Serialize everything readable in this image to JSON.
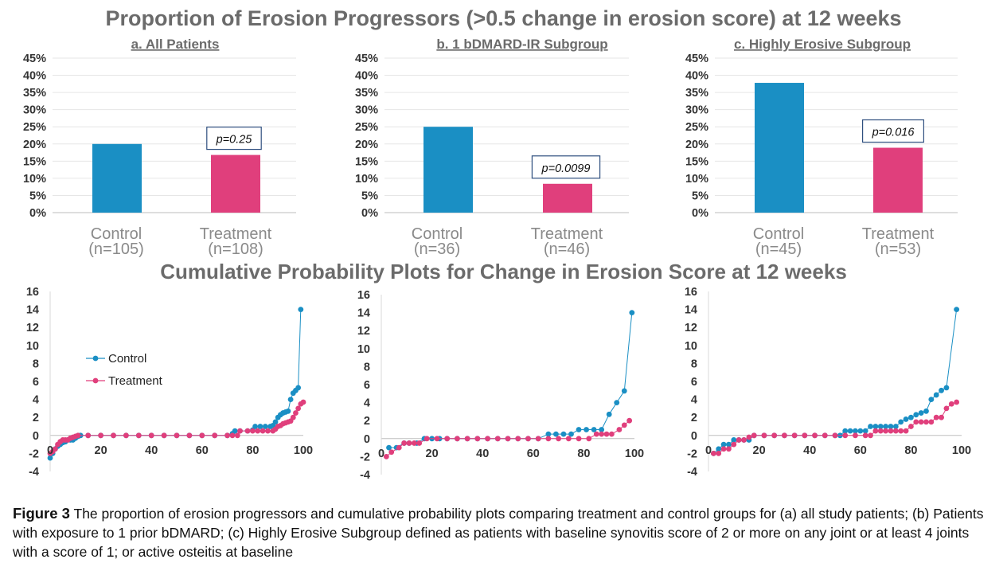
{
  "titles": {
    "top": "Proportion of Erosion Progressors (>0.5 change in erosion score) at 12 weeks",
    "bottom": "Cumulative Probability Plots for Change in Erosion Score at 12 weeks"
  },
  "caption": {
    "label": "Figure 3",
    "text": " The proportion of erosion progressors and cumulative probability plots comparing treatment and control groups for (a) all study patients; (b) Patients with exposure to 1 prior bDMARD; (c) Highly Erosive Subgroup defined as patients with baseline synovitis score of 2 or more on any joint or at least 4 joints with a score of 1; or active osteitis at baseline"
  },
  "colors": {
    "control": "#1a8fc4",
    "treatment": "#e03f7c",
    "axis_text": "#333333",
    "cat_text": "#8a8a8a"
  },
  "chart_data": [
    {
      "type": "bar",
      "title": "a. All Patients",
      "categories": [
        "Control",
        "Treatment"
      ],
      "category_n": [
        "(n=105)",
        "(n=108)"
      ],
      "values": [
        20,
        16.8
      ],
      "value_unit": "%",
      "ylim": [
        0,
        45
      ],
      "yticks": [
        "0%",
        "5%",
        "10%",
        "15%",
        "20%",
        "25%",
        "30%",
        "35%",
        "40%",
        "45%"
      ],
      "annotation": "p=0.25",
      "grid": true
    },
    {
      "type": "bar",
      "title": "b. 1 bDMARD-IR Subgroup",
      "categories": [
        "Control",
        "Treatment"
      ],
      "category_n": [
        "(n=36)",
        "(n=46)"
      ],
      "values": [
        25,
        8.4
      ],
      "value_unit": "%",
      "ylim": [
        0,
        45
      ],
      "yticks": [
        "0%",
        "5%",
        "10%",
        "15%",
        "20%",
        "25%",
        "30%",
        "35%",
        "40%",
        "45%"
      ],
      "annotation": "p=0.0099",
      "grid": true
    },
    {
      "type": "bar",
      "title": "c. Highly Erosive Subgroup",
      "categories": [
        "Control",
        "Treatment"
      ],
      "category_n": [
        "(n=45)",
        "(n=53)"
      ],
      "values": [
        37.8,
        18.9
      ],
      "value_unit": "%",
      "ylim": [
        0,
        45
      ],
      "yticks": [
        "0%",
        "5%",
        "10%",
        "15%",
        "20%",
        "25%",
        "30%",
        "35%",
        "40%",
        "45%"
      ],
      "annotation": "p=0.016",
      "grid": true
    },
    {
      "type": "line",
      "xlim": [
        0,
        100
      ],
      "ylim": [
        -4,
        16
      ],
      "xticks": [
        0,
        20,
        40,
        60,
        80,
        100
      ],
      "yticks": [
        -4,
        -2,
        0,
        2,
        4,
        6,
        8,
        10,
        12,
        14,
        16
      ],
      "legend": "top-left",
      "series": [
        {
          "name": "Control",
          "points": [
            [
              0,
              -2.5
            ],
            [
              1,
              -2
            ],
            [
              2,
              -1.5
            ],
            [
              3,
              -1.2
            ],
            [
              4,
              -1
            ],
            [
              5,
              -0.8
            ],
            [
              6,
              -0.7
            ],
            [
              7,
              -0.5
            ],
            [
              8,
              -0.5
            ],
            [
              9,
              -0.5
            ],
            [
              10,
              -0.3
            ],
            [
              11,
              -0.1
            ],
            [
              12,
              0
            ],
            [
              15,
              0
            ],
            [
              20,
              0
            ],
            [
              25,
              0
            ],
            [
              30,
              0
            ],
            [
              35,
              0
            ],
            [
              40,
              0
            ],
            [
              45,
              0
            ],
            [
              50,
              0
            ],
            [
              55,
              0
            ],
            [
              60,
              0
            ],
            [
              65,
              0
            ],
            [
              70,
              0
            ],
            [
              72,
              0.2
            ],
            [
              73,
              0.5
            ],
            [
              75,
              0.5
            ],
            [
              78,
              0.5
            ],
            [
              80,
              0.6
            ],
            [
              81,
              1
            ],
            [
              83,
              1
            ],
            [
              85,
              1
            ],
            [
              87,
              1
            ],
            [
              88,
              1.1
            ],
            [
              89,
              1.5
            ],
            [
              90,
              2
            ],
            [
              91,
              2.3
            ],
            [
              92,
              2.5
            ],
            [
              93,
              2.6
            ],
            [
              94,
              2.7
            ],
            [
              95,
              4
            ],
            [
              96,
              4.7
            ],
            [
              97,
              5
            ],
            [
              98,
              5.3
            ],
            [
              99,
              14
            ]
          ]
        },
        {
          "name": "Treatment",
          "points": [
            [
              0,
              -2
            ],
            [
              1,
              -1.8
            ],
            [
              2,
              -1.5
            ],
            [
              3,
              -1
            ],
            [
              4,
              -0.7
            ],
            [
              5,
              -0.5
            ],
            [
              6,
              -0.5
            ],
            [
              7,
              -0.5
            ],
            [
              8,
              -0.3
            ],
            [
              9,
              -0.2
            ],
            [
              10,
              -0.1
            ],
            [
              11,
              0
            ],
            [
              15,
              0
            ],
            [
              20,
              0
            ],
            [
              25,
              0
            ],
            [
              30,
              0
            ],
            [
              35,
              0
            ],
            [
              40,
              0
            ],
            [
              45,
              0
            ],
            [
              50,
              0
            ],
            [
              55,
              0
            ],
            [
              60,
              0
            ],
            [
              65,
              0
            ],
            [
              70,
              0
            ],
            [
              72,
              0
            ],
            [
              74,
              0
            ],
            [
              75,
              0.5
            ],
            [
              78,
              0.5
            ],
            [
              80,
              0.5
            ],
            [
              82,
              0.5
            ],
            [
              84,
              0.5
            ],
            [
              86,
              0.5
            ],
            [
              88,
              0.5
            ],
            [
              89,
              0.7
            ],
            [
              90,
              1
            ],
            [
              91,
              1.1
            ],
            [
              92,
              1.3
            ],
            [
              93,
              1.4
            ],
            [
              94,
              1.5
            ],
            [
              95,
              1.6
            ],
            [
              96,
              2
            ],
            [
              97,
              2.5
            ],
            [
              98,
              3
            ],
            [
              99,
              3.5
            ],
            [
              100,
              3.7
            ]
          ]
        }
      ]
    },
    {
      "type": "line",
      "xlim": [
        0,
        100
      ],
      "ylim": [
        -4,
        16
      ],
      "xticks": [
        0,
        20,
        40,
        60,
        80,
        100
      ],
      "yticks": [
        -4,
        -2,
        0,
        2,
        4,
        6,
        8,
        10,
        12,
        14,
        16
      ],
      "series": [
        {
          "name": "Control",
          "points": [
            [
              3,
              -1
            ],
            [
              6,
              -1
            ],
            [
              9,
              -0.5
            ],
            [
              11,
              -0.5
            ],
            [
              14,
              -0.5
            ],
            [
              17,
              0
            ],
            [
              20,
              0
            ],
            [
              23,
              0
            ],
            [
              26,
              0
            ],
            [
              30,
              0
            ],
            [
              34,
              0
            ],
            [
              38,
              0
            ],
            [
              42,
              0
            ],
            [
              46,
              0
            ],
            [
              50,
              0
            ],
            [
              54,
              0
            ],
            [
              58,
              0
            ],
            [
              62,
              0
            ],
            [
              66,
              0.5
            ],
            [
              69,
              0.5
            ],
            [
              72,
              0.5
            ],
            [
              75,
              0.5
            ],
            [
              78,
              1
            ],
            [
              81,
              1
            ],
            [
              84,
              1
            ],
            [
              87,
              1
            ],
            [
              90,
              2.7
            ],
            [
              93,
              4
            ],
            [
              96,
              5.3
            ],
            [
              99,
              14
            ]
          ]
        },
        {
          "name": "Treatment",
          "points": [
            [
              2,
              -2
            ],
            [
              4,
              -1.5
            ],
            [
              7,
              -1
            ],
            [
              9,
              -0.5
            ],
            [
              11,
              -0.5
            ],
            [
              13,
              -0.5
            ],
            [
              15,
              -0.5
            ],
            [
              18,
              0
            ],
            [
              22,
              0
            ],
            [
              26,
              0
            ],
            [
              30,
              0
            ],
            [
              34,
              0
            ],
            [
              38,
              0
            ],
            [
              42,
              0
            ],
            [
              46,
              0
            ],
            [
              50,
              0
            ],
            [
              54,
              0
            ],
            [
              58,
              0
            ],
            [
              62,
              0
            ],
            [
              66,
              0
            ],
            [
              70,
              0
            ],
            [
              74,
              0
            ],
            [
              78,
              0
            ],
            [
              82,
              0
            ],
            [
              85,
              0.5
            ],
            [
              87,
              0.5
            ],
            [
              89,
              0.5
            ],
            [
              91,
              0.5
            ],
            [
              94,
              1
            ],
            [
              96,
              1.5
            ],
            [
              98,
              2
            ]
          ]
        }
      ]
    },
    {
      "type": "line",
      "xlim": [
        0,
        100
      ],
      "ylim": [
        -4,
        16
      ],
      "xticks": [
        0,
        20,
        40,
        60,
        80,
        100
      ],
      "yticks": [
        -4,
        -2,
        0,
        2,
        4,
        6,
        8,
        10,
        12,
        14,
        16
      ],
      "series": [
        {
          "name": "Control",
          "points": [
            [
              2,
              -2
            ],
            [
              4,
              -1.5
            ],
            [
              6,
              -1
            ],
            [
              8,
              -1
            ],
            [
              10,
              -0.5
            ],
            [
              12,
              -0.5
            ],
            [
              14,
              -0.5
            ],
            [
              16,
              -0.5
            ],
            [
              18,
              0
            ],
            [
              22,
              0
            ],
            [
              26,
              0
            ],
            [
              30,
              0
            ],
            [
              34,
              0
            ],
            [
              38,
              0
            ],
            [
              42,
              0
            ],
            [
              46,
              0
            ],
            [
              50,
              0
            ],
            [
              52,
              0
            ],
            [
              54,
              0.5
            ],
            [
              56,
              0.5
            ],
            [
              58,
              0.5
            ],
            [
              60,
              0.5
            ],
            [
              62,
              0.5
            ],
            [
              64,
              1
            ],
            [
              66,
              1
            ],
            [
              68,
              1
            ],
            [
              70,
              1
            ],
            [
              72,
              1
            ],
            [
              74,
              1
            ],
            [
              76,
              1.5
            ],
            [
              78,
              1.8
            ],
            [
              80,
              2
            ],
            [
              82,
              2.3
            ],
            [
              84,
              2.5
            ],
            [
              86,
              2.7
            ],
            [
              88,
              4
            ],
            [
              90,
              4.5
            ],
            [
              92,
              5
            ],
            [
              94,
              5.3
            ],
            [
              98,
              14
            ]
          ]
        },
        {
          "name": "Treatment",
          "points": [
            [
              2,
              -2
            ],
            [
              4,
              -2
            ],
            [
              6,
              -1.5
            ],
            [
              8,
              -1.5
            ],
            [
              10,
              -1
            ],
            [
              12,
              -0.5
            ],
            [
              14,
              -0.5
            ],
            [
              16,
              -0.2
            ],
            [
              18,
              0
            ],
            [
              22,
              0
            ],
            [
              26,
              0
            ],
            [
              30,
              0
            ],
            [
              34,
              0
            ],
            [
              38,
              0
            ],
            [
              42,
              0
            ],
            [
              46,
              0
            ],
            [
              50,
              0
            ],
            [
              54,
              0
            ],
            [
              58,
              0
            ],
            [
              62,
              0
            ],
            [
              64,
              0
            ],
            [
              66,
              0.5
            ],
            [
              68,
              0.5
            ],
            [
              70,
              0.5
            ],
            [
              72,
              0.5
            ],
            [
              74,
              0.5
            ],
            [
              76,
              0.5
            ],
            [
              78,
              0.5
            ],
            [
              80,
              1
            ],
            [
              82,
              1.5
            ],
            [
              84,
              1.5
            ],
            [
              86,
              1.5
            ],
            [
              88,
              1.5
            ],
            [
              90,
              2
            ],
            [
              92,
              2
            ],
            [
              94,
              3
            ],
            [
              96,
              3.5
            ],
            [
              98,
              3.7
            ]
          ]
        }
      ]
    }
  ]
}
